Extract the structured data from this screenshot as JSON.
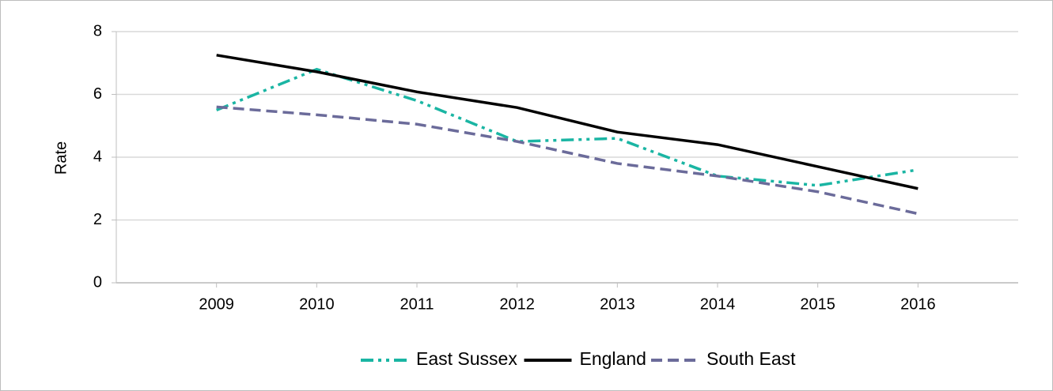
{
  "chart_data": {
    "type": "line",
    "y_label": "Rate",
    "x": [
      2009,
      2010,
      2011,
      2012,
      2013,
      2014,
      2015,
      2016
    ],
    "xlim": [
      2008,
      2017
    ],
    "xticks": [
      2009,
      2010,
      2011,
      2012,
      2013,
      2014,
      2015,
      2016
    ],
    "ylim": [
      0,
      8
    ],
    "yticks": [
      0,
      2,
      4,
      6,
      8
    ],
    "grid": true,
    "legend": "bottom",
    "series": [
      {
        "name": "East Sussex",
        "color": "#1ab5a3",
        "line_style": "dash-dot-dot",
        "values": [
          5.5,
          6.8,
          5.8,
          4.5,
          4.6,
          3.4,
          3.1,
          3.6
        ]
      },
      {
        "name": "England",
        "color": "#000000",
        "line_style": "solid",
        "values": [
          7.25,
          6.72,
          6.08,
          5.58,
          4.8,
          4.4,
          3.7,
          3.0
        ]
      },
      {
        "name": "South East",
        "color": "#6b6b9a",
        "line_style": "dashed",
        "values": [
          5.6,
          5.35,
          5.05,
          4.5,
          3.8,
          3.4,
          2.9,
          2.2
        ]
      }
    ]
  }
}
